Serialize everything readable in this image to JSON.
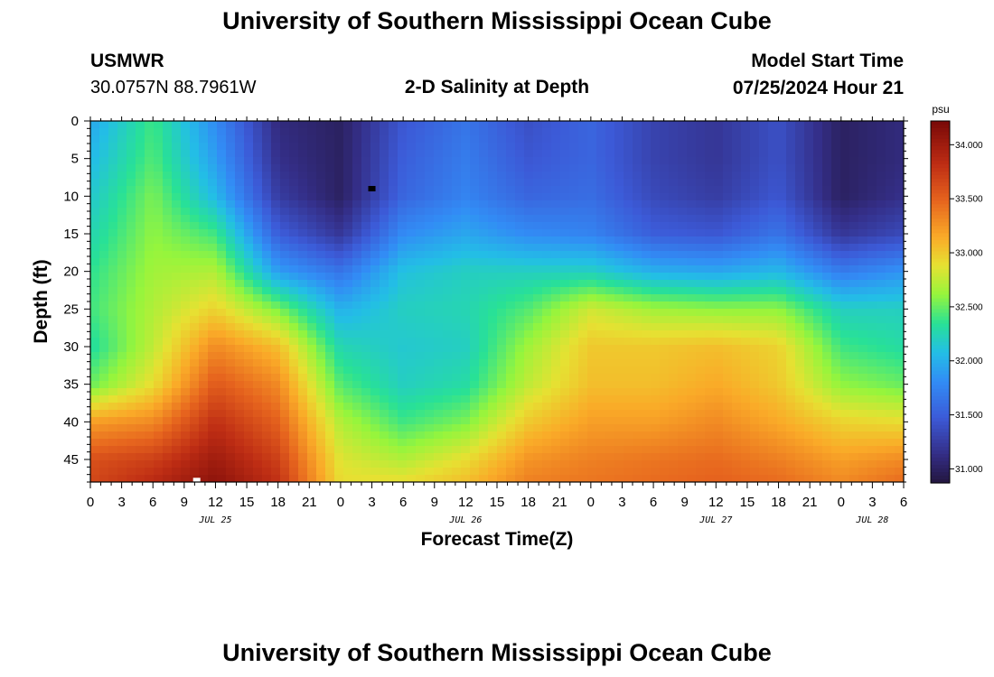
{
  "header": {
    "title": "University of Southern Mississippi Ocean Cube",
    "station": "USMWR",
    "coords": "30.0757N  88.7961W",
    "subtitle": "2-D Salinity at Depth",
    "model_label": "Model Start Time",
    "model_time": "07/25/2024 Hour 21"
  },
  "footer": {
    "title": "University of Southern Mississippi Ocean Cube"
  },
  "chart_data": {
    "type": "heatmap",
    "title": "2-D Salinity at Depth",
    "xlabel": "Forecast Time(Z)",
    "ylabel": "Depth (ft)",
    "x_tick_labels": [
      "0",
      "3",
      "6",
      "9",
      "12",
      "15",
      "18",
      "21",
      "0",
      "3",
      "6",
      "9",
      "12",
      "15",
      "18",
      "21",
      "0",
      "3",
      "6",
      "9",
      "12",
      "15",
      "18",
      "21",
      "0",
      "3",
      "6"
    ],
    "date_labels": [
      {
        "label": "JUL 25",
        "hour": 12
      },
      {
        "label": "JUL 26",
        "hour": 36
      },
      {
        "label": "JUL 27",
        "hour": 60
      },
      {
        "label": "JUL 28",
        "hour": 75
      }
    ],
    "x_range_hours": [
      0,
      78
    ],
    "depth_range_ft": [
      0,
      48
    ],
    "y_ticks": [
      0,
      5,
      10,
      15,
      20,
      25,
      30,
      35,
      40,
      45
    ],
    "colorbar": {
      "unit": "psu",
      "range": [
        30.87,
        34.22
      ],
      "ticks": [
        "31.000",
        "31.500",
        "32.000",
        "32.500",
        "33.000",
        "33.500",
        "34.000"
      ]
    },
    "profile_hours": [
      0,
      6,
      12,
      18,
      24,
      30,
      36,
      42,
      48,
      54,
      60,
      66,
      72,
      78
    ],
    "profile_depths_ft": [
      0,
      5,
      10,
      15,
      20,
      25,
      30,
      35,
      40,
      45,
      48
    ],
    "salinity_psu": [
      [
        31.95,
        32.05,
        32.15,
        32.25,
        32.35,
        32.4,
        32.3,
        32.5,
        33.2,
        33.6,
        33.65
      ],
      [
        32.4,
        32.45,
        32.55,
        32.6,
        32.65,
        32.7,
        32.75,
        32.9,
        33.3,
        33.7,
        33.85
      ],
      [
        31.8,
        31.9,
        32.05,
        32.4,
        32.7,
        32.95,
        33.3,
        33.55,
        33.8,
        34.0,
        34.1
      ],
      [
        31.1,
        31.15,
        31.25,
        31.5,
        31.9,
        32.55,
        33.05,
        33.3,
        33.5,
        33.7,
        33.8
      ],
      [
        31.0,
        31.0,
        31.0,
        31.2,
        31.65,
        32.0,
        32.25,
        32.45,
        32.7,
        32.85,
        32.9
      ],
      [
        31.45,
        31.5,
        31.55,
        31.8,
        32.1,
        32.2,
        32.15,
        32.2,
        32.4,
        32.7,
        32.9
      ],
      [
        31.65,
        31.7,
        31.75,
        31.95,
        32.2,
        32.25,
        32.2,
        32.3,
        32.55,
        32.9,
        33.05
      ],
      [
        31.4,
        31.45,
        31.55,
        31.8,
        32.2,
        32.45,
        32.65,
        32.75,
        33.0,
        33.25,
        33.35
      ],
      [
        31.55,
        31.55,
        31.6,
        31.75,
        32.2,
        32.8,
        33.0,
        33.05,
        33.2,
        33.35,
        33.4
      ],
      [
        31.3,
        31.3,
        31.35,
        31.5,
        32.0,
        32.65,
        33.0,
        33.05,
        33.2,
        33.4,
        33.45
      ],
      [
        31.2,
        31.2,
        31.25,
        31.45,
        31.95,
        32.6,
        33.05,
        33.15,
        33.3,
        33.45,
        33.5
      ],
      [
        31.4,
        31.4,
        31.45,
        31.65,
        32.05,
        32.6,
        32.95,
        33.0,
        33.15,
        33.35,
        33.45
      ],
      [
        31.0,
        31.0,
        31.0,
        31.2,
        31.7,
        32.2,
        32.4,
        32.6,
        32.95,
        33.2,
        33.3
      ],
      [
        31.1,
        31.1,
        31.15,
        31.35,
        31.85,
        32.2,
        32.3,
        32.5,
        32.9,
        33.3,
        33.45
      ]
    ],
    "markers": [
      {
        "hour": 27.0,
        "depth_ft": 9,
        "color": "#000000"
      },
      {
        "hour": 10.2,
        "depth_ft": 47.8,
        "color": "#ffffff"
      }
    ]
  }
}
